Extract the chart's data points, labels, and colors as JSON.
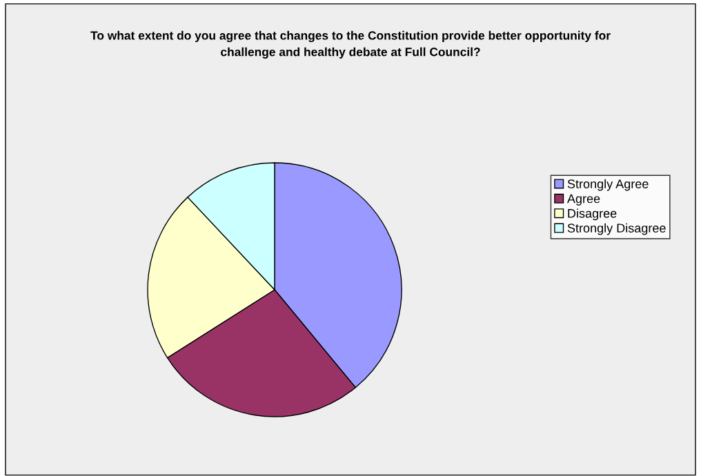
{
  "chart_data": {
    "type": "pie",
    "title": "To what extent do you agree that changes to the Constitution provide better opportunity for challenge and healthy debate at Full Council?",
    "categories": [
      "Strongly Agree",
      "Agree",
      "Disagree",
      "Strongly Disagree"
    ],
    "values": [
      39,
      27,
      22,
      12
    ],
    "colors": [
      "#9999ff",
      "#993366",
      "#ffffcc",
      "#ccffff"
    ],
    "legend": "right"
  }
}
